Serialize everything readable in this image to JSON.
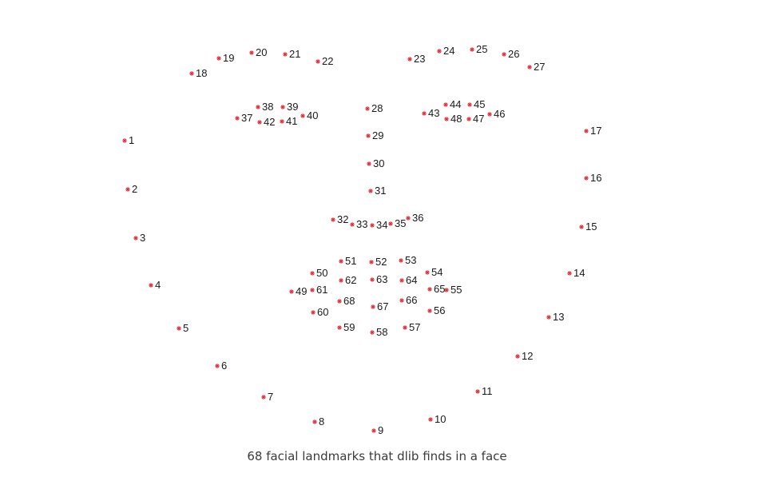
{
  "caption": "68 facial landmarks that dlib finds in a face",
  "marker_color": "#e0303a",
  "label_color": "#1a1a1a",
  "landmarks": [
    {
      "id": "1"
    },
    {
      "id": "2"
    },
    {
      "id": "3"
    },
    {
      "id": "4"
    },
    {
      "id": "5"
    },
    {
      "id": "6"
    },
    {
      "id": "7"
    },
    {
      "id": "8"
    },
    {
      "id": "9"
    },
    {
      "id": "10"
    },
    {
      "id": "11"
    },
    {
      "id": "12"
    },
    {
      "id": "13"
    },
    {
      "id": "14"
    },
    {
      "id": "15"
    },
    {
      "id": "16"
    },
    {
      "id": "17"
    },
    {
      "id": "18"
    },
    {
      "id": "19"
    },
    {
      "id": "20"
    },
    {
      "id": "21"
    },
    {
      "id": "22"
    },
    {
      "id": "23"
    },
    {
      "id": "24"
    },
    {
      "id": "25"
    },
    {
      "id": "26"
    },
    {
      "id": "27"
    },
    {
      "id": "28"
    },
    {
      "id": "29"
    },
    {
      "id": "30"
    },
    {
      "id": "31"
    },
    {
      "id": "32"
    },
    {
      "id": "33"
    },
    {
      "id": "34"
    },
    {
      "id": "35"
    },
    {
      "id": "36"
    },
    {
      "id": "37"
    },
    {
      "id": "38"
    },
    {
      "id": "39"
    },
    {
      "id": "40"
    },
    {
      "id": "41"
    },
    {
      "id": "42"
    },
    {
      "id": "43"
    },
    {
      "id": "44"
    },
    {
      "id": "45"
    },
    {
      "id": "46"
    },
    {
      "id": "47"
    },
    {
      "id": "48"
    },
    {
      "id": "49"
    },
    {
      "id": "50"
    },
    {
      "id": "51"
    },
    {
      "id": "52"
    },
    {
      "id": "53"
    },
    {
      "id": "54"
    },
    {
      "id": "55"
    },
    {
      "id": "56"
    },
    {
      "id": "57"
    },
    {
      "id": "58"
    },
    {
      "id": "59"
    },
    {
      "id": "60"
    },
    {
      "id": "61"
    },
    {
      "id": "62"
    },
    {
      "id": "63"
    },
    {
      "id": "64"
    },
    {
      "id": "65"
    },
    {
      "id": "66"
    },
    {
      "id": "67"
    },
    {
      "id": "68"
    }
  ]
}
